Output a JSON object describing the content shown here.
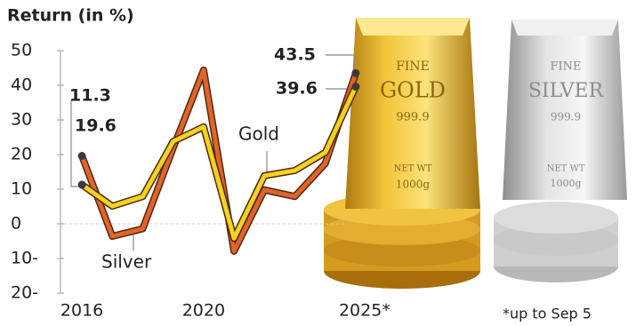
{
  "chart_data": {
    "type": "line",
    "y_axis_title": "Return (in %)",
    "x": [
      2016,
      2017,
      2018,
      2019,
      2020,
      2021,
      2022,
      2023,
      2024,
      2025
    ],
    "xlim": [
      2015.5,
      2025.5
    ],
    "xticks": [
      2016,
      2020,
      {
        "value": 2025,
        "label": "2025*"
      }
    ],
    "ylim": [
      -20,
      50
    ],
    "yticks": [
      {
        "value": -20,
        "label": "20-"
      },
      {
        "value": -10,
        "label": "10-"
      },
      0,
      10,
      20,
      30,
      40,
      50
    ],
    "series": [
      {
        "name": "Silver",
        "color": "#e2632a",
        "values": [
          19.6,
          -3.6,
          -1.4,
          21.9,
          44.4,
          -7.9,
          9.8,
          7.9,
          17.4,
          43.5
        ]
      },
      {
        "name": "Gold",
        "color": "#f4d21f",
        "values": [
          11.3,
          5.1,
          7.9,
          23.8,
          28.0,
          -4.2,
          13.9,
          15.4,
          20.6,
          39.6
        ]
      }
    ],
    "footnote": "*up to Sep 5",
    "bar_stamps": {
      "gold": [
        "FINE",
        "GOLD",
        "999.9",
        "NET WT",
        "1000g"
      ],
      "silver": [
        "FINE",
        "SILVER",
        "999.9",
        "NET WT",
        "1000g"
      ]
    }
  }
}
